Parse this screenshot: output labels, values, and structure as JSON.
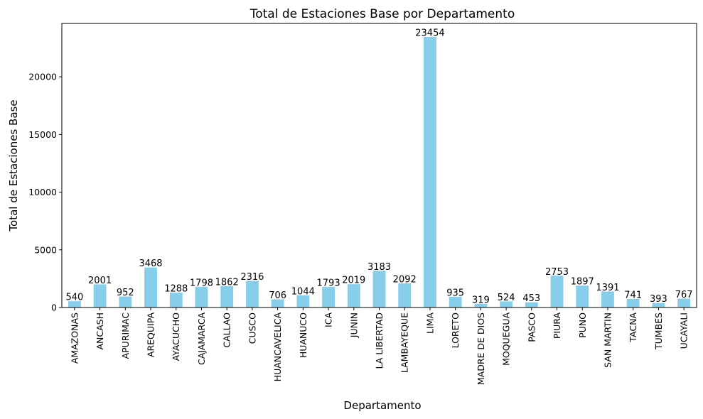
{
  "chart_data": {
    "type": "bar",
    "title": "Total de Estaciones Base por Departamento",
    "xlabel": "Departamento",
    "ylabel": "Total de Estaciones Base",
    "ylim": [
      0,
      24627
    ],
    "yticks": [
      0,
      5000,
      10000,
      15000,
      20000
    ],
    "grid": false,
    "bar_color": "#87CEEB",
    "categories": [
      "AMAZONAS",
      "ANCASH",
      "APURIMAC",
      "AREQUIPA",
      "AYACUCHO",
      "CAJAMARCA",
      "CALLAO",
      "CUSCO",
      "HUANCAVELICA",
      "HUANUCO",
      "ICA",
      "JUNIN",
      "LA LIBERTAD",
      "LAMBAYEQUE",
      "LIMA",
      "LORETO",
      "MADRE DE DIOS",
      "MOQUEGUA",
      "PASCO",
      "PIURA",
      "PUNO",
      "SAN MARTIN",
      "TACNA",
      "TUMBES",
      "UCAYALI"
    ],
    "values": [
      540,
      2001,
      952,
      3468,
      1288,
      1798,
      1862,
      2316,
      706,
      1044,
      1793,
      2019,
      3183,
      2092,
      23454,
      935,
      319,
      524,
      453,
      2753,
      1897,
      1391,
      741,
      393,
      767
    ]
  }
}
